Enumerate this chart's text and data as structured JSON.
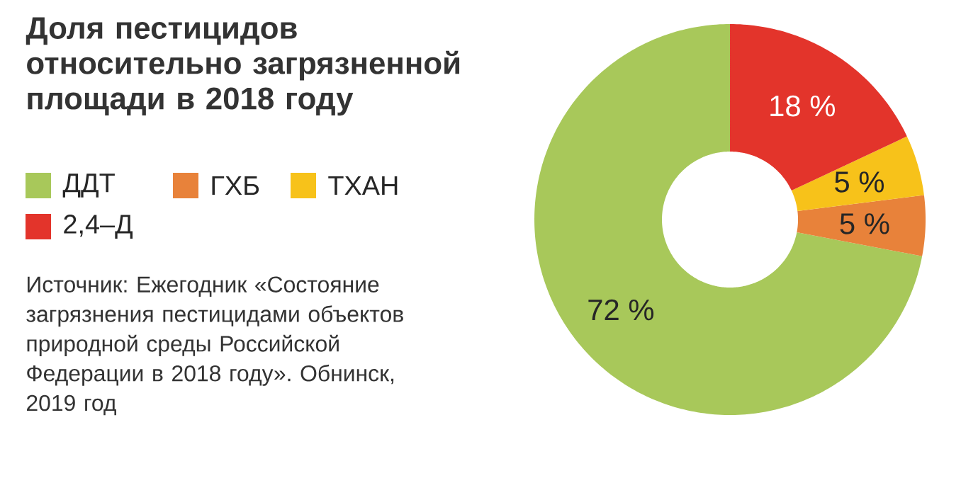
{
  "chart_data": {
    "type": "donut",
    "title": "Доля пестицидов относительно загрязненной площади в 2018 году",
    "categories": [
      "ДДТ",
      "ГХБ",
      "ТХАН",
      "2,4–Д"
    ],
    "values": [
      72,
      5,
      5,
      18
    ],
    "colors": [
      "#a8c85a",
      "#e8823a",
      "#f7c21a",
      "#e3342b"
    ],
    "value_labels": [
      "72 %",
      "5 %",
      "5 %",
      "18 %"
    ],
    "legend": "top left",
    "annotations": [
      "Источник: Ежегодник «Состояние загрязнения пестицидами объектов природной среды Российской Федерации в 2018 году». Обнинск, 2019 год"
    ]
  }
}
